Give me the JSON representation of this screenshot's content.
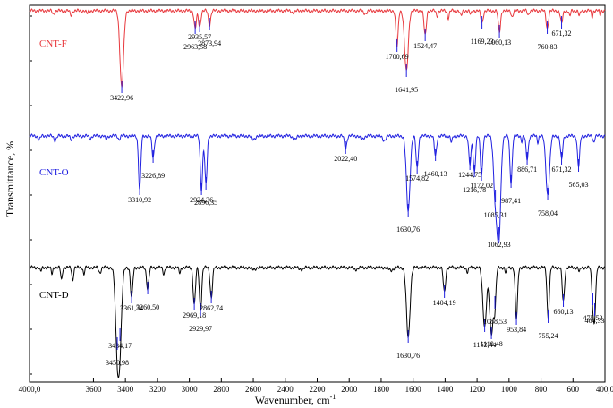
{
  "chart_data": {
    "type": "line",
    "xlabel": "Wavenumber, cm",
    "xlabel_sup": "-1",
    "ylabel": "Transmittance, %",
    "xlim": [
      4000,
      400
    ],
    "x_reversed": true,
    "grid": false,
    "xticks": [
      "4000,0",
      "3600",
      "3400",
      "3200",
      "3000",
      "2800",
      "2600",
      "2400",
      "2200",
      "2000",
      "1800",
      "1600",
      "1400",
      "1200",
      "1000",
      "800",
      "600",
      "400,0"
    ],
    "xtick_values": [
      4000,
      3600,
      3400,
      3200,
      3000,
      2800,
      2600,
      2400,
      2200,
      2000,
      1800,
      1600,
      1400,
      1200,
      1000,
      800,
      600,
      400
    ],
    "series": [
      {
        "name": "CNT-F",
        "color": "#e8383d",
        "peaks": [
          {
            "x": 3422.96,
            "label": "3422,96",
            "depth": 86
          },
          {
            "x": 2963.58,
            "label": "2963,58",
            "depth": 20
          },
          {
            "x": 2935.57,
            "label": "2935,57",
            "depth": 18
          },
          {
            "x": 2873.94,
            "label": "2873,94",
            "depth": 16
          },
          {
            "x": 1700.69,
            "label": "1700,69",
            "depth": 40
          },
          {
            "x": 1641.95,
            "label": "1641,95",
            "depth": 68
          },
          {
            "x": 1524.47,
            "label": "1524,47",
            "depth": 28
          },
          {
            "x": 1169.23,
            "label": "1169,23",
            "depth": 14
          },
          {
            "x": 1060.13,
            "label": "1060,13",
            "depth": 24
          },
          {
            "x": 760.83,
            "label": "760,83",
            "depth": 20
          },
          {
            "x": 671.32,
            "label": "671,32",
            "depth": 14
          }
        ]
      },
      {
        "name": "CNT-O",
        "color": "#2020e0",
        "peaks": [
          {
            "x": 3310.92,
            "label": "3310,92",
            "depth": 60
          },
          {
            "x": 3226.89,
            "label": "3226,89",
            "depth": 24
          },
          {
            "x": 2924.36,
            "label": "2924,36",
            "depth": 60
          },
          {
            "x": 2896.35,
            "label": "2896,35",
            "depth": 54
          },
          {
            "x": 2022.4,
            "label": "2022,40",
            "depth": 14
          },
          {
            "x": 1630.76,
            "label": "1630,76",
            "depth": 84
          },
          {
            "x": 1574.82,
            "label": "1574,82",
            "depth": 36
          },
          {
            "x": 1460.13,
            "label": "1460,13",
            "depth": 22
          },
          {
            "x": 1244.75,
            "label": "1244,75",
            "depth": 32
          },
          {
            "x": 1216.78,
            "label": "1216,78",
            "depth": 40
          },
          {
            "x": 1172.02,
            "label": "1172,02",
            "depth": 44
          },
          {
            "x": 1085.31,
            "label": "1085,31",
            "depth": 68
          },
          {
            "x": 1062.93,
            "label": "1062,93",
            "depth": 110
          },
          {
            "x": 987.41,
            "label": "987,41",
            "depth": 52
          },
          {
            "x": 886.71,
            "label": "886,71",
            "depth": 26
          },
          {
            "x": 758.04,
            "label": "758,04",
            "depth": 66
          },
          {
            "x": 671.32,
            "label": "671,32",
            "depth": 26
          },
          {
            "x": 565.03,
            "label": "565,03",
            "depth": 34
          }
        ]
      },
      {
        "name": "CNT-D",
        "color": "#000000",
        "peaks": [
          {
            "x": 3434.17,
            "label": "3434,17",
            "depth": 76
          },
          {
            "x": 3450.98,
            "label": "3450,98",
            "depth": 86
          },
          {
            "x": 3361.34,
            "label": "3361,34",
            "depth": 34
          },
          {
            "x": 3260.5,
            "label": "3260,50",
            "depth": 24
          },
          {
            "x": 2969.18,
            "label": "2969,18",
            "depth": 42
          },
          {
            "x": 2929.97,
            "label": "2929,97",
            "depth": 48
          },
          {
            "x": 2862.74,
            "label": "2862,74",
            "depth": 34
          },
          {
            "x": 1630.76,
            "label": "1630,76",
            "depth": 78
          },
          {
            "x": 1404.19,
            "label": "1404,19",
            "depth": 28
          },
          {
            "x": 1152.44,
            "label": "1152,44",
            "depth": 66
          },
          {
            "x": 1110.48,
            "label": "1110,48",
            "depth": 74
          },
          {
            "x": 1088.53,
            "label": "1088,53",
            "depth": 40
          },
          {
            "x": 953.84,
            "label": "953,84",
            "depth": 58
          },
          {
            "x": 755.24,
            "label": "755,24",
            "depth": 56
          },
          {
            "x": 660.13,
            "label": "660,13",
            "depth": 38
          },
          {
            "x": 475.52,
            "label": "475,52",
            "depth": 36
          },
          {
            "x": 464.33,
            "label": "464,33",
            "depth": 48
          }
        ]
      }
    ]
  }
}
